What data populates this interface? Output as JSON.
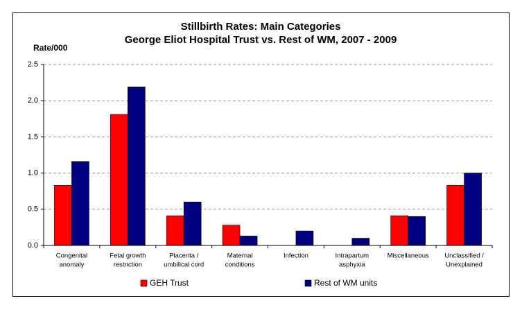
{
  "chart_data": {
    "type": "bar",
    "title": "Stillbirth Rates: Main Categories",
    "subtitle": "George Eliot Hospital Trust vs. Rest of WM, 2007 - 2009",
    "y_label": "Rate/000",
    "categories": [
      [
        "Congenital",
        "anomaly"
      ],
      [
        "Fetal growth",
        "restriction"
      ],
      [
        "Placenta /",
        "umbilical cord"
      ],
      [
        "Maternal",
        "conditions"
      ],
      [
        "Infection"
      ],
      [
        "Intrapartum",
        "asphyxia"
      ],
      [
        "Miscellaneous"
      ],
      [
        "Unclassified /",
        "Unexplained"
      ]
    ],
    "series": [
      {
        "name": "GEH Trust",
        "color": "#ff0000",
        "values": [
          0.83,
          1.81,
          0.41,
          0.28,
          0,
          0,
          0.41,
          0.83
        ]
      },
      {
        "name": "Rest of WM units",
        "color": "#000080",
        "values": [
          1.16,
          2.19,
          0.6,
          0.13,
          0.2,
          0.1,
          0.4,
          1.0
        ]
      }
    ],
    "ylim": [
      0,
      2.5
    ],
    "yticks": [
      {
        "value": 0,
        "label": "0.0"
      },
      {
        "value": 0.5,
        "label": "0.5"
      },
      {
        "value": 1,
        "label": "1.0"
      },
      {
        "value": 1.5,
        "label": "1.5"
      },
      {
        "value": 2,
        "label": "2.0"
      },
      {
        "value": 2.5,
        "label": "2.5"
      }
    ],
    "grid": true,
    "legend": "bottom"
  }
}
